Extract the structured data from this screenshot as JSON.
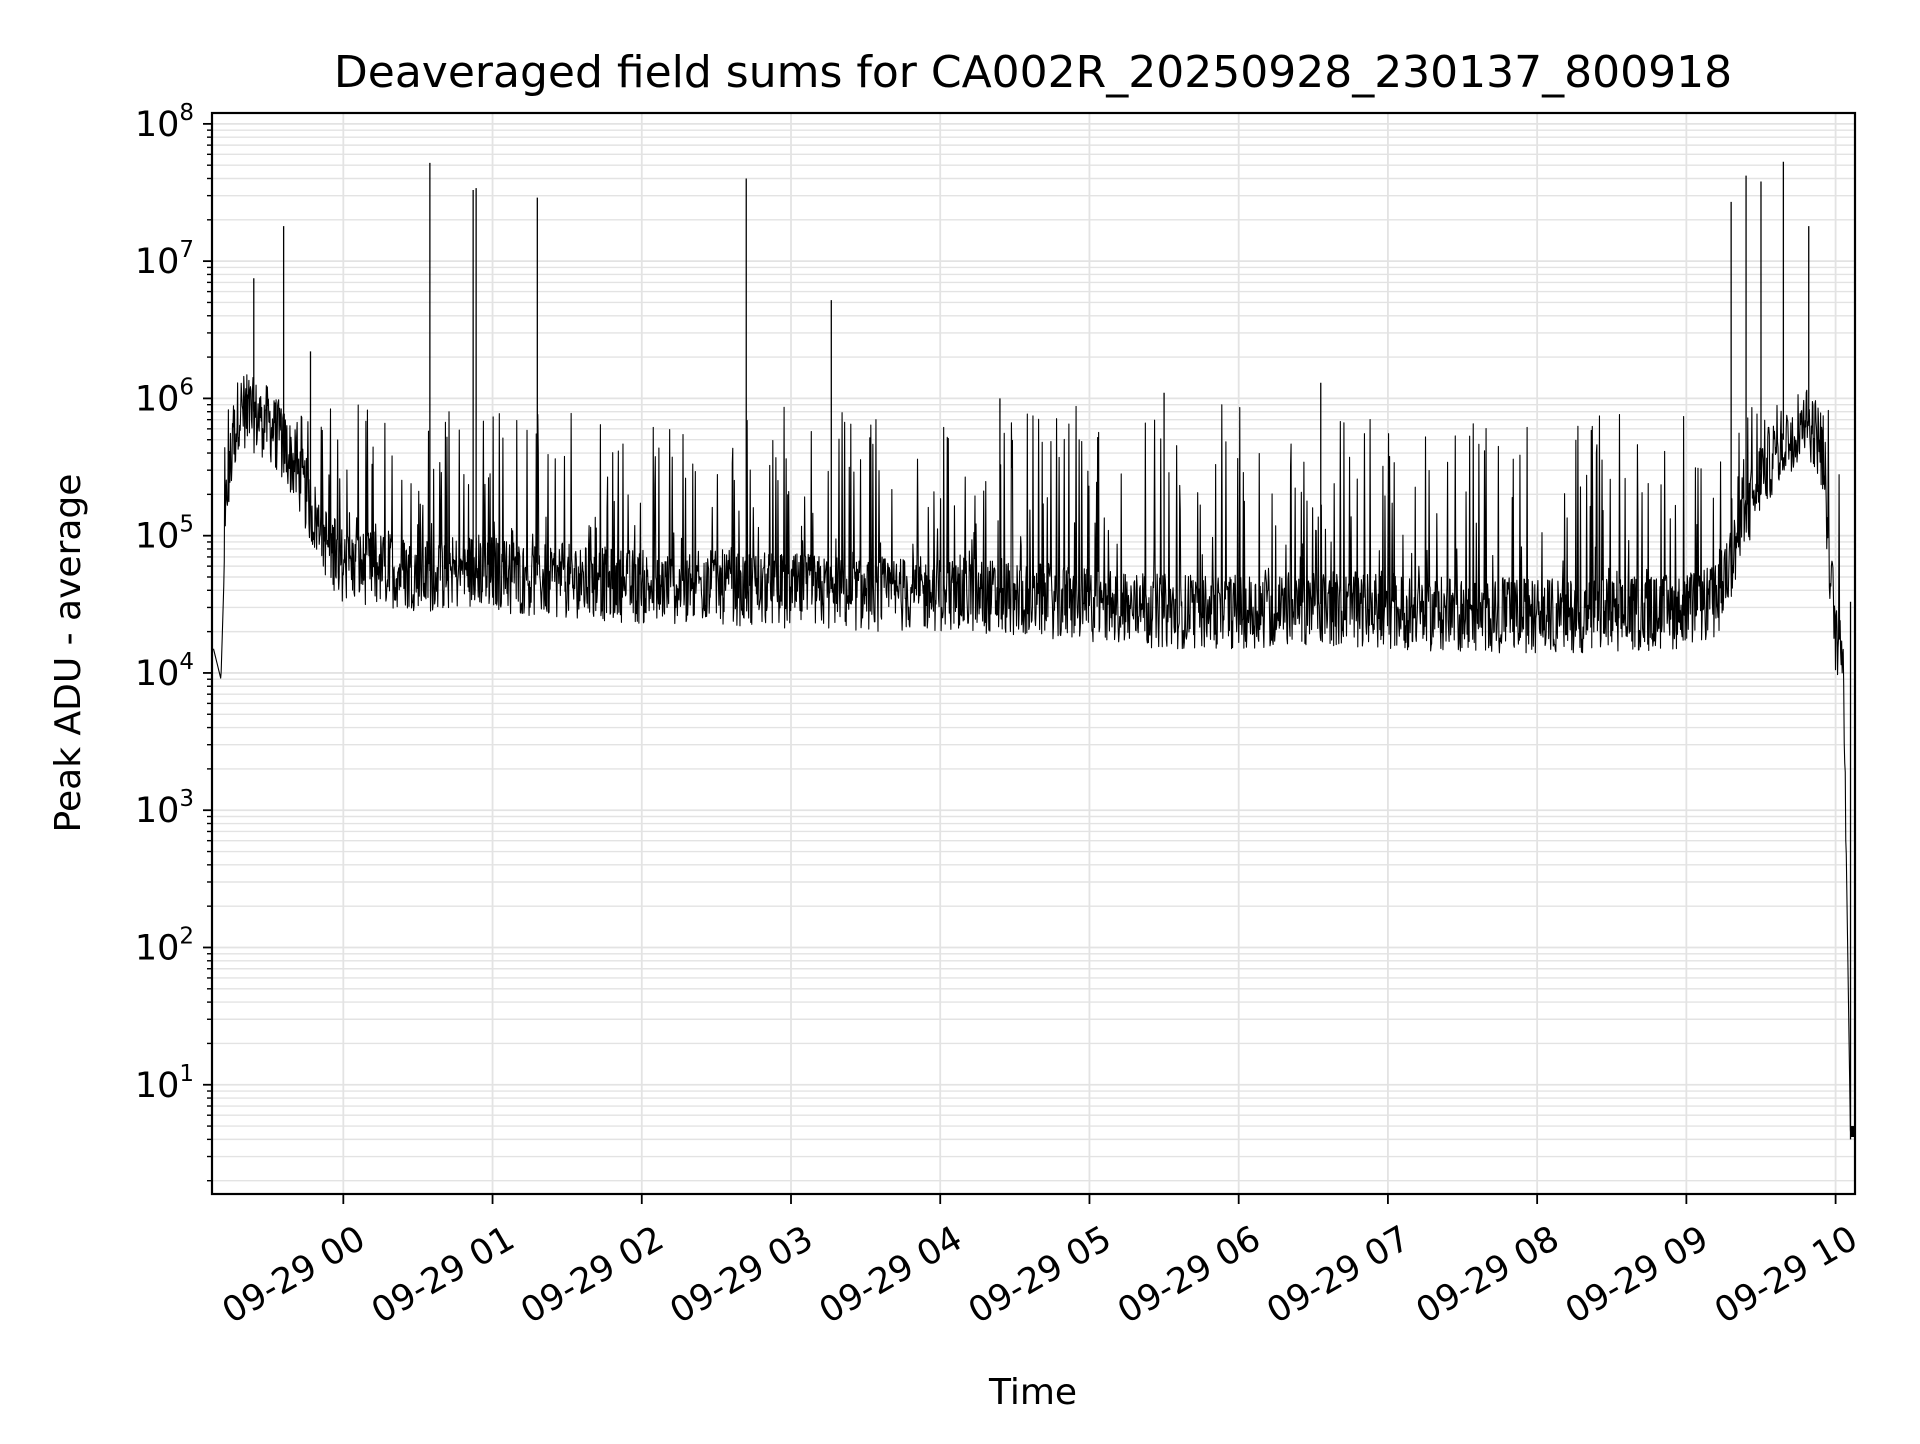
{
  "chart_data": {
    "type": "line",
    "title": "Deaveraged field sums for CA002R_20250928_230137_800918",
    "xlabel": "Time",
    "ylabel": "Peak ADU - average",
    "yscale": "log",
    "ylim": [
      1.6,
      120000000
    ],
    "xlim_hours": [
      -0.88,
      10.13
    ],
    "grid": true,
    "line_color": "#000000",
    "grid_color": "#e3e3e3",
    "x_ticks": [
      {
        "hour": 0,
        "label": "09-29 00"
      },
      {
        "hour": 1,
        "label": "09-29 01"
      },
      {
        "hour": 2,
        "label": "09-29 02"
      },
      {
        "hour": 3,
        "label": "09-29 03"
      },
      {
        "hour": 4,
        "label": "09-29 04"
      },
      {
        "hour": 5,
        "label": "09-29 05"
      },
      {
        "hour": 6,
        "label": "09-29 06"
      },
      {
        "hour": 7,
        "label": "09-29 07"
      },
      {
        "hour": 8,
        "label": "09-29 08"
      },
      {
        "hour": 9,
        "label": "09-29 09"
      },
      {
        "hour": 10,
        "label": "09-29 10"
      }
    ],
    "y_ticks": [
      {
        "exp": 1,
        "base": "10",
        "sup": "1"
      },
      {
        "exp": 2,
        "base": "10",
        "sup": "2"
      },
      {
        "exp": 3,
        "base": "10",
        "sup": "3"
      },
      {
        "exp": 4,
        "base": "10",
        "sup": "4"
      },
      {
        "exp": 5,
        "base": "10",
        "sup": "5"
      },
      {
        "exp": 6,
        "base": "10",
        "sup": "6"
      },
      {
        "exp": 7,
        "base": "10",
        "sup": "7"
      },
      {
        "exp": 8,
        "base": "10",
        "sup": "8"
      }
    ],
    "series": [
      {
        "name": "Peak ADU - average",
        "baseline": [
          [
            -0.87,
            15000
          ],
          [
            -0.82,
            9000
          ],
          [
            -0.78,
            250000
          ],
          [
            -0.7,
            900000
          ],
          [
            -0.6,
            800000
          ],
          [
            -0.5,
            700000
          ],
          [
            -0.4,
            500000
          ],
          [
            -0.3,
            300000
          ],
          [
            -0.2,
            150000
          ],
          [
            -0.1,
            90000
          ],
          [
            0.0,
            65000
          ],
          [
            0.3,
            60000
          ],
          [
            0.6,
            55000
          ],
          [
            0.9,
            60000
          ],
          [
            1.2,
            52000
          ],
          [
            1.5,
            50000
          ],
          [
            2.0,
            45000
          ],
          [
            2.5,
            45000
          ],
          [
            3.0,
            42000
          ],
          [
            3.5,
            40000
          ],
          [
            4.0,
            40000
          ],
          [
            4.5,
            38000
          ],
          [
            5.0,
            33000
          ],
          [
            5.5,
            30000
          ],
          [
            6.0,
            30000
          ],
          [
            6.5,
            32000
          ],
          [
            7.0,
            30000
          ],
          [
            7.5,
            28000
          ],
          [
            8.0,
            28000
          ],
          [
            8.5,
            28000
          ],
          [
            9.0,
            30000
          ],
          [
            9.2,
            35000
          ],
          [
            9.35,
            100000
          ],
          [
            9.5,
            300000
          ],
          [
            9.65,
            500000
          ],
          [
            9.8,
            800000
          ],
          [
            9.9,
            500000
          ],
          [
            9.95,
            100000
          ],
          [
            10.0,
            20000
          ],
          [
            10.05,
            18000
          ],
          [
            10.1,
            4
          ],
          [
            10.13,
            4
          ]
        ],
        "spikes": [
          [
            -0.6,
            7500000
          ],
          [
            -0.4,
            18000000
          ],
          [
            -0.22,
            2200000
          ],
          [
            0.58,
            52000000
          ],
          [
            0.87,
            33000000
          ],
          [
            0.89,
            34000000
          ],
          [
            1.3,
            29000000
          ],
          [
            2.7,
            40000000
          ],
          [
            3.27,
            5200000
          ],
          [
            4.4,
            1000000
          ],
          [
            5.5,
            1100000
          ],
          [
            6.55,
            1300000
          ],
          [
            9.3,
            27000000
          ],
          [
            9.4,
            42000000
          ],
          [
            9.5,
            38000000
          ],
          [
            9.65,
            53000000
          ],
          [
            9.82,
            18000000
          ],
          [
            10.1,
            33000
          ]
        ],
        "spike_envelope": [
          [
            -0.5,
            1000000
          ],
          [
            0.0,
            900000
          ],
          [
            1.0,
            900000
          ],
          [
            2.0,
            700000
          ],
          [
            3.0,
            900000
          ],
          [
            4.0,
            800000
          ],
          [
            5.0,
            900000
          ],
          [
            6.0,
            900000
          ],
          [
            7.0,
            800000
          ],
          [
            8.0,
            700000
          ],
          [
            9.0,
            900000
          ]
        ]
      }
    ]
  }
}
